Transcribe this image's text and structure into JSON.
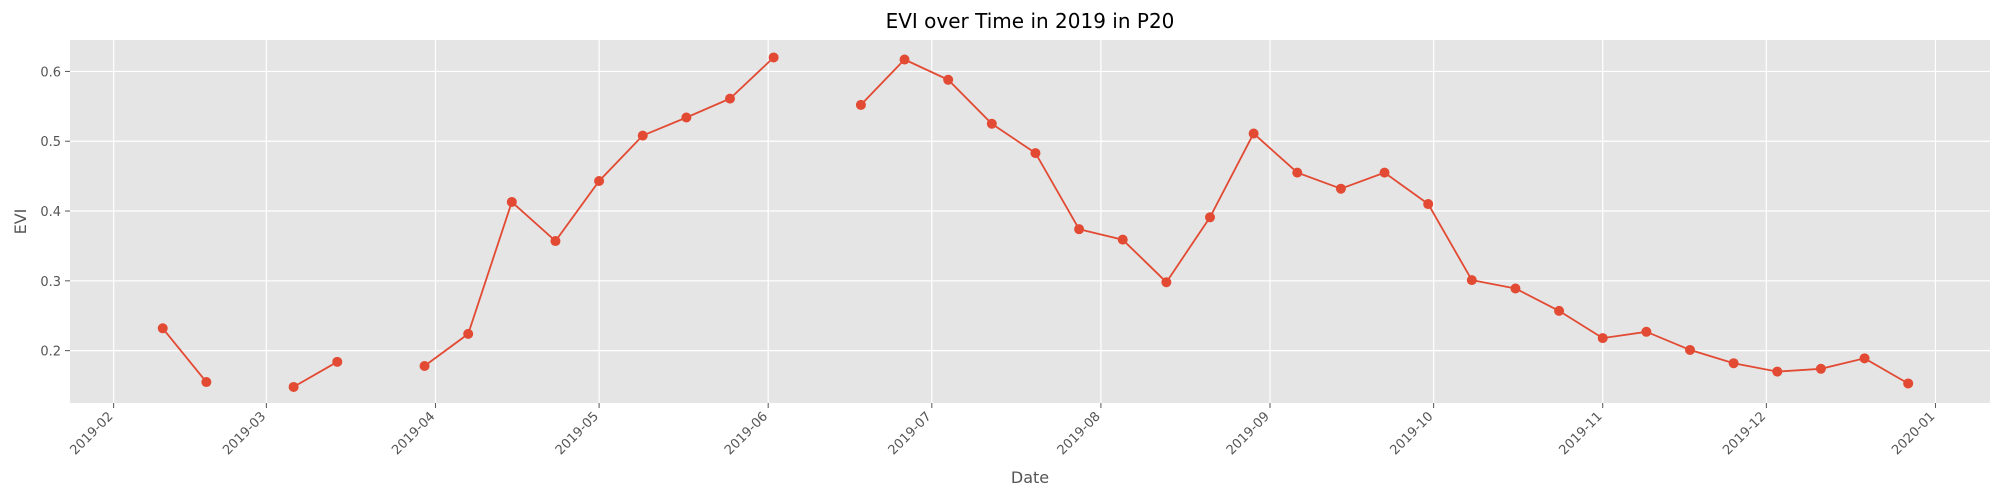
{
  "chart_data": {
    "type": "line",
    "title": "EVI over Time in 2019 in P20",
    "xlabel": "Date",
    "ylabel": "EVI",
    "x_ticks": [
      "2019-02",
      "2019-03",
      "2019-04",
      "2019-05",
      "2019-06",
      "2019-07",
      "2019-08",
      "2019-09",
      "2019-10",
      "2019-11",
      "2019-12",
      "2020-01"
    ],
    "y_ticks": [
      0.2,
      0.3,
      0.4,
      0.5,
      0.6
    ],
    "xlim": [
      "2019-01-24",
      "2020-01-11"
    ],
    "ylim": [
      0.125,
      0.645
    ],
    "grid": true,
    "background": "#e5e5e5",
    "series": [
      {
        "color": "#e24a33",
        "points": [
          {
            "date": "2019-02-10",
            "evi": 0.232
          },
          {
            "date": "2019-02-18",
            "evi": 0.155
          },
          {
            "date": null,
            "evi": null
          },
          {
            "date": "2019-03-06",
            "evi": 0.148
          },
          {
            "date": "2019-03-14",
            "evi": 0.184
          },
          {
            "date": null,
            "evi": null
          },
          {
            "date": "2019-03-30",
            "evi": 0.178
          },
          {
            "date": "2019-04-07",
            "evi": 0.224
          },
          {
            "date": "2019-04-15",
            "evi": 0.413
          },
          {
            "date": "2019-04-23",
            "evi": 0.357
          },
          {
            "date": "2019-05-01",
            "evi": 0.443
          },
          {
            "date": "2019-05-09",
            "evi": 0.508
          },
          {
            "date": "2019-05-17",
            "evi": 0.534
          },
          {
            "date": "2019-05-25",
            "evi": 0.561
          },
          {
            "date": "2019-06-02",
            "evi": 0.62
          },
          {
            "date": null,
            "evi": null
          },
          {
            "date": "2019-06-18",
            "evi": 0.552
          },
          {
            "date": "2019-06-26",
            "evi": 0.617
          },
          {
            "date": "2019-07-04",
            "evi": 0.588
          },
          {
            "date": "2019-07-12",
            "evi": 0.525
          },
          {
            "date": "2019-07-20",
            "evi": 0.483
          },
          {
            "date": "2019-07-28",
            "evi": 0.374
          },
          {
            "date": "2019-08-05",
            "evi": 0.359
          },
          {
            "date": "2019-08-13",
            "evi": 0.298
          },
          {
            "date": "2019-08-21",
            "evi": 0.391
          },
          {
            "date": "2019-08-29",
            "evi": 0.511
          },
          {
            "date": "2019-09-06",
            "evi": 0.455
          },
          {
            "date": "2019-09-14",
            "evi": 0.432
          },
          {
            "date": "2019-09-22",
            "evi": 0.455
          },
          {
            "date": "2019-09-30",
            "evi": 0.41
          },
          {
            "date": "2019-10-08",
            "evi": 0.301
          },
          {
            "date": "2019-10-16",
            "evi": 0.289
          },
          {
            "date": "2019-10-24",
            "evi": 0.257
          },
          {
            "date": "2019-11-01",
            "evi": 0.218
          },
          {
            "date": "2019-11-09",
            "evi": 0.227
          },
          {
            "date": "2019-11-17",
            "evi": 0.201
          },
          {
            "date": "2019-11-25",
            "evi": 0.182
          },
          {
            "date": "2019-12-03",
            "evi": 0.17
          },
          {
            "date": "2019-12-11",
            "evi": 0.174
          },
          {
            "date": "2019-12-19",
            "evi": 0.189
          },
          {
            "date": "2019-12-27",
            "evi": 0.153
          }
        ]
      }
    ]
  }
}
